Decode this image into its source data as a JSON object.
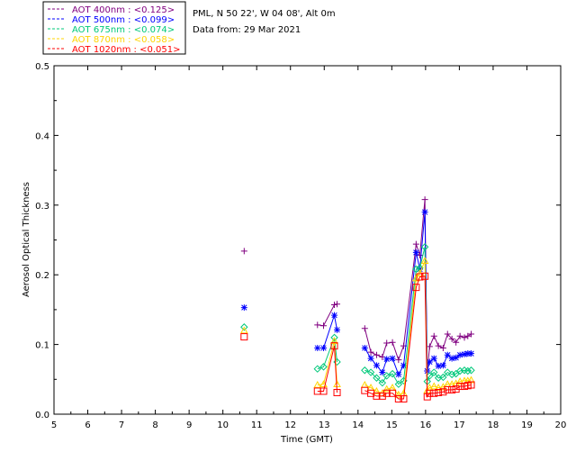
{
  "chart_data": {
    "type": "scatter",
    "title": "PML, N 50 22', W 04 08', Alt 0m",
    "subtitle": "Data from: 29 Mar 2021",
    "xlabel": "Time (GMT)",
    "ylabel": "Aerosol Optical Thickness",
    "xlim": [
      5,
      20
    ],
    "ylim": [
      0,
      0.5
    ],
    "xticks": [
      "5",
      "6",
      "7",
      "8",
      "9",
      "10",
      "11",
      "12",
      "13",
      "14",
      "15",
      "16",
      "17",
      "18",
      "19",
      "20"
    ],
    "yticks": [
      "0.0",
      "0.1",
      "0.2",
      "0.3",
      "0.4",
      "0.5"
    ],
    "x": [
      10.63,
      12.8,
      12.98,
      13.3,
      13.38,
      14.2,
      14.38,
      14.55,
      14.72,
      14.85,
      15.02,
      15.2,
      15.35,
      15.72,
      15.83,
      15.98,
      16.05,
      16.12,
      16.25,
      16.38,
      16.52,
      16.65,
      16.78,
      16.9,
      17.02,
      17.15,
      17.25,
      17.35
    ],
    "series": [
      {
        "name": "AOT  400nm",
        "legend": "AOT  400nm : <0.125>",
        "color": "#800080",
        "marker": "plus",
        "values": [
          0.234,
          0.128,
          0.127,
          0.157,
          0.158,
          0.123,
          0.089,
          0.085,
          0.082,
          0.102,
          0.103,
          0.078,
          0.098,
          0.244,
          0.228,
          0.308,
          0.062,
          0.097,
          0.112,
          0.098,
          0.095,
          0.115,
          0.108,
          0.103,
          0.112,
          0.11,
          0.112,
          0.115
        ]
      },
      {
        "name": "AOT  500nm",
        "legend": "AOT  500nm : <0.099>",
        "color": "#0000ff",
        "marker": "star",
        "values": [
          0.153,
          0.095,
          0.095,
          0.142,
          0.121,
          0.095,
          0.08,
          0.07,
          0.06,
          0.079,
          0.08,
          0.057,
          0.07,
          0.232,
          0.208,
          0.29,
          0.062,
          0.075,
          0.08,
          0.069,
          0.07,
          0.085,
          0.08,
          0.081,
          0.085,
          0.086,
          0.087,
          0.087
        ]
      },
      {
        "name": "AOT  675nm",
        "legend": "AOT  675nm : <0.074>",
        "color": "#00c87a",
        "marker": "diamond",
        "values": [
          0.125,
          0.065,
          0.068,
          0.11,
          0.075,
          0.063,
          0.06,
          0.052,
          0.045,
          0.055,
          0.058,
          0.043,
          0.048,
          0.208,
          0.21,
          0.24,
          0.047,
          0.055,
          0.06,
          0.052,
          0.053,
          0.06,
          0.057,
          0.058,
          0.062,
          0.063,
          0.062,
          0.063
        ]
      },
      {
        "name": "AOT  870nm",
        "legend": "AOT  870nm : <0.058>",
        "color": "#ffd400",
        "marker": "triangle",
        "values": [
          0.12,
          0.042,
          0.043,
          0.105,
          0.043,
          0.042,
          0.038,
          0.033,
          0.03,
          0.036,
          0.038,
          0.028,
          0.03,
          0.195,
          0.202,
          0.22,
          0.034,
          0.038,
          0.04,
          0.038,
          0.039,
          0.043,
          0.043,
          0.044,
          0.047,
          0.048,
          0.048,
          0.049
        ]
      },
      {
        "name": "AOT 1020nm",
        "legend": "AOT 1020nm : <0.051>",
        "color": "#ff0000",
        "marker": "square",
        "values": [
          0.111,
          0.033,
          0.033,
          0.098,
          0.031,
          0.034,
          0.03,
          0.026,
          0.026,
          0.03,
          0.03,
          0.022,
          0.022,
          0.182,
          0.197,
          0.198,
          0.025,
          0.03,
          0.03,
          0.031,
          0.032,
          0.035,
          0.035,
          0.036,
          0.04,
          0.04,
          0.041,
          0.042
        ]
      }
    ]
  }
}
